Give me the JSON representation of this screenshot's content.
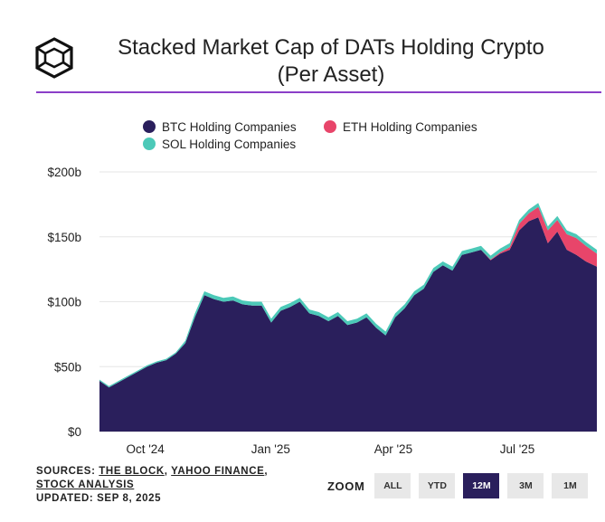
{
  "header": {
    "title_line1": "Stacked Market Cap of DATs Holding Crypto",
    "title_line2": "(Per Asset)"
  },
  "colors": {
    "btc": "#2a1f5c",
    "eth": "#e8456a",
    "sol": "#4cc9b8",
    "accent_rule": "#8b3fc8",
    "grid": "#e6e6e6"
  },
  "chart_data": {
    "type": "area",
    "stacked": true,
    "legend": [
      "BTC Holding Companies",
      "ETH Holding Companies",
      "SOL Holding Companies"
    ],
    "legend_position": "top-center",
    "y_ticks": [
      "$0",
      "$50b",
      "$100b",
      "$150b",
      "$200b"
    ],
    "ylim": [
      0,
      200
    ],
    "x_ticks": [
      {
        "label": "Oct '24",
        "date": "2024-10-01"
      },
      {
        "label": "Jan '25",
        "date": "2025-01-01"
      },
      {
        "label": "Apr '25",
        "date": "2025-04-01"
      },
      {
        "label": "Jul '25",
        "date": "2025-07-01"
      }
    ],
    "xlim": [
      "2024-09-08",
      "2025-09-08"
    ],
    "grid": true,
    "x": [
      "2024-09-08",
      "2024-09-15",
      "2024-09-22",
      "2024-09-29",
      "2024-10-06",
      "2024-10-13",
      "2024-10-20",
      "2024-10-27",
      "2024-11-03",
      "2024-11-10",
      "2024-11-17",
      "2024-11-24",
      "2024-12-01",
      "2024-12-08",
      "2024-12-15",
      "2024-12-22",
      "2024-12-29",
      "2025-01-05",
      "2025-01-12",
      "2025-01-19",
      "2025-01-26",
      "2025-02-02",
      "2025-02-09",
      "2025-02-16",
      "2025-02-23",
      "2025-03-02",
      "2025-03-09",
      "2025-03-16",
      "2025-03-23",
      "2025-03-30",
      "2025-04-06",
      "2025-04-13",
      "2025-04-20",
      "2025-04-27",
      "2025-05-04",
      "2025-05-11",
      "2025-05-18",
      "2025-05-25",
      "2025-06-01",
      "2025-06-08",
      "2025-06-15",
      "2025-06-22",
      "2025-06-29",
      "2025-07-06",
      "2025-07-13",
      "2025-07-20",
      "2025-07-27",
      "2025-08-03",
      "2025-08-10",
      "2025-08-17",
      "2025-08-24",
      "2025-08-31",
      "2025-09-08"
    ],
    "series": [
      {
        "name": "BTC Holding Companies",
        "values": [
          39,
          34,
          38,
          42,
          46,
          50,
          53,
          55,
          60,
          68,
          88,
          105,
          102,
          100,
          101,
          98,
          97,
          97,
          84,
          93,
          96,
          100,
          91,
          89,
          85,
          89,
          82,
          84,
          88,
          80,
          74,
          88,
          95,
          105,
          110,
          123,
          128,
          124,
          136,
          138,
          140,
          132,
          137,
          140,
          155,
          162,
          165,
          145,
          154,
          140,
          136,
          131,
          127
        ]
      },
      {
        "name": "ETH Holding Companies",
        "values": [
          0,
          0,
          0,
          0,
          0,
          0,
          0,
          0,
          0,
          0,
          0,
          0,
          0,
          0,
          0,
          0,
          0,
          0,
          0,
          0,
          0,
          0,
          0,
          0,
          0,
          0,
          0,
          0,
          0,
          0,
          0,
          0,
          0,
          0,
          0,
          0,
          0,
          0,
          0,
          0,
          0,
          0.5,
          1,
          2,
          5,
          6,
          8,
          10,
          9,
          12,
          13,
          12,
          10
        ]
      },
      {
        "name": "SOL Holding Companies",
        "values": [
          1,
          1,
          1,
          1,
          1,
          1,
          1,
          1,
          1,
          2,
          3,
          3,
          3,
          3,
          3,
          3,
          3,
          3,
          3,
          3,
          3,
          3,
          3,
          3,
          3,
          3,
          3,
          3,
          3,
          3,
          3,
          3,
          3,
          3,
          3,
          3,
          3,
          3,
          3,
          3,
          3,
          3,
          3,
          3,
          3,
          3,
          3,
          3,
          3,
          3,
          3,
          3,
          3
        ]
      }
    ]
  },
  "footer": {
    "sources_prefix": "SOURCES: ",
    "source1": "THE BLOCK",
    "sep1": ", ",
    "source2": "YAHOO FINANCE",
    "sep2": ",",
    "source3": "STOCK ANALYSIS",
    "updated": "UPDATED: SEP 8, 2025"
  },
  "zoom": {
    "label": "ZOOM",
    "buttons": [
      "ALL",
      "YTD",
      "12M",
      "3M",
      "1M"
    ],
    "active": "12M"
  }
}
